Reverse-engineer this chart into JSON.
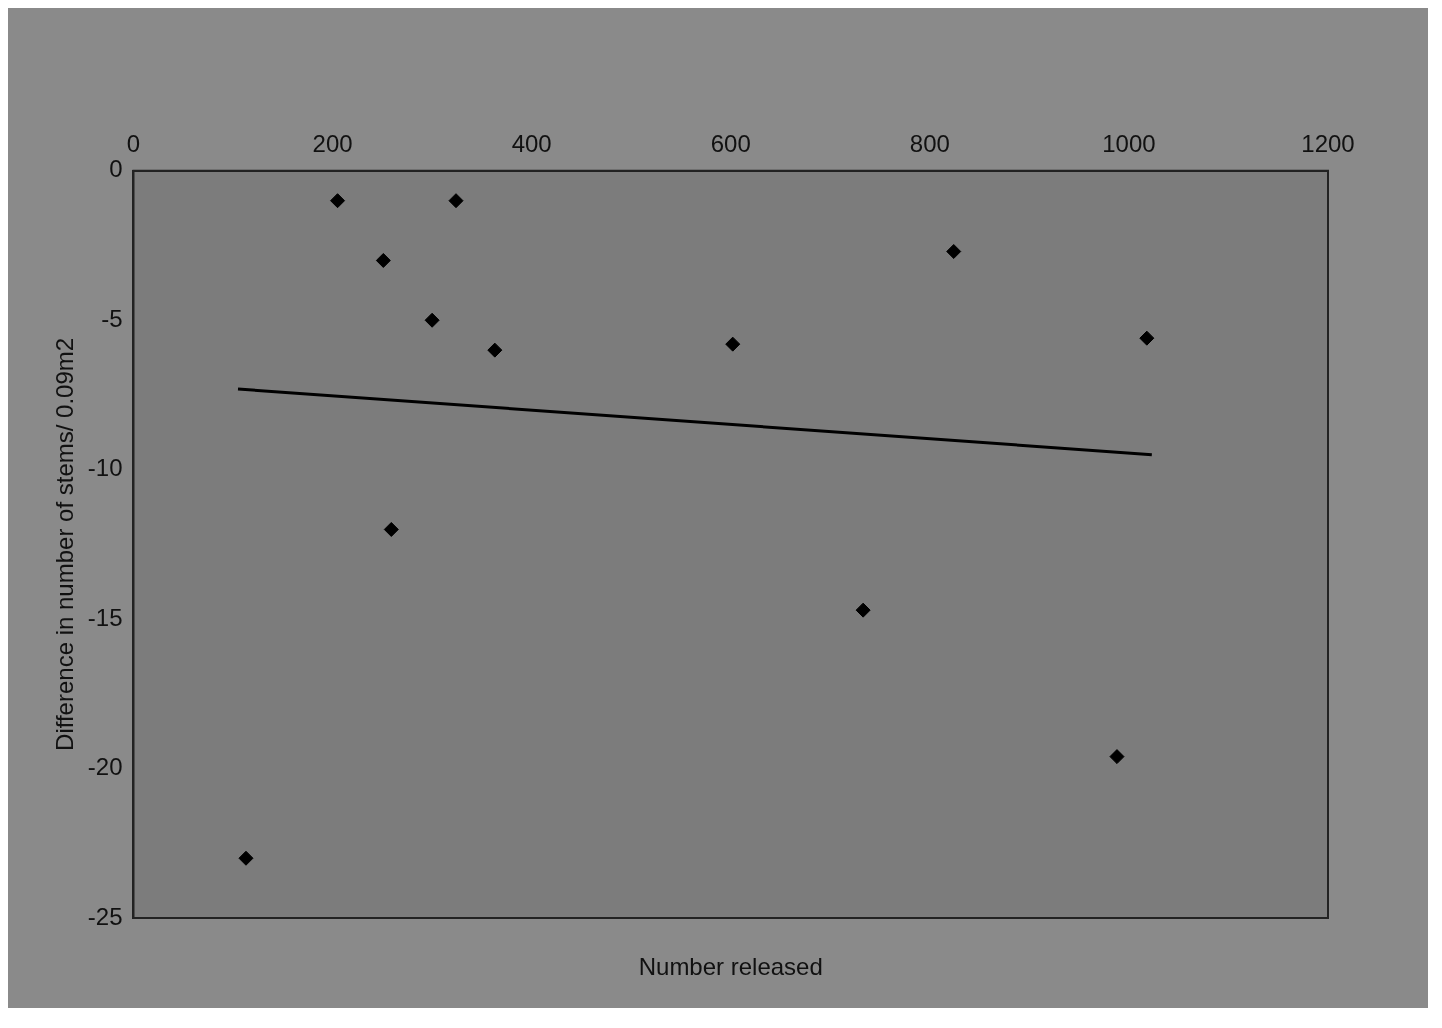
{
  "chart_data": {
    "type": "scatter",
    "xlabel": "Number released",
    "ylabel": "Difference in number of stems/ 0.09m2",
    "xlim": [
      0,
      1200
    ],
    "xticks": [
      0,
      200,
      400,
      600,
      800,
      1000,
      1200
    ],
    "ylim": [
      -25,
      0
    ],
    "yticks": [
      -25,
      -20,
      -15,
      -10,
      -5,
      0
    ],
    "grid": false,
    "legend": false,
    "series": [
      {
        "color": "#000000",
        "marker": "diamond",
        "x": [
          113,
          205,
          251,
          259,
          300,
          324,
          363,
          602,
          733,
          824,
          988,
          1018
        ],
        "values": [
          -23,
          -1,
          -3,
          -12,
          -5,
          -1,
          -6,
          -5.8,
          -14.7,
          -2.7,
          -19.6,
          -5.6
        ]
      },
      {
        "type": "line",
        "color": "#000000",
        "marker": "none",
        "x": [
          105,
          1023
        ],
        "values": [
          -7.3,
          -9.5
        ]
      }
    ]
  }
}
